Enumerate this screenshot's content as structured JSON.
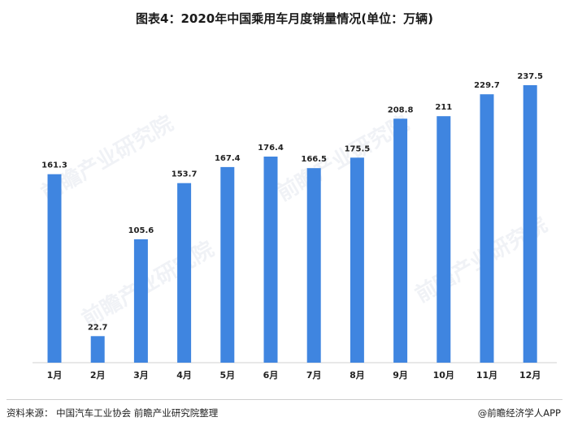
{
  "title": "图表4：2020年中国乘用车月度销量情况(单位：万辆)",
  "source": "资料来源：  中国汽车工业协会  前瞻产业研究院整理",
  "brand": "@前瞻经济学人APP",
  "watermark": "前瞻产业研究院",
  "colors": {
    "bar": "#3f85e0"
  },
  "chart_data": {
    "type": "bar",
    "categories": [
      "1月",
      "2月",
      "3月",
      "4月",
      "5月",
      "6月",
      "7月",
      "8月",
      "9月",
      "10月",
      "11月",
      "12月"
    ],
    "values": [
      161.3,
      22.7,
      105.6,
      153.7,
      167.4,
      176.4,
      166.5,
      175.5,
      208.8,
      211,
      229.7,
      237.5
    ],
    "value_labels": [
      "161.3",
      "22.7",
      "105.6",
      "153.7",
      "167.4",
      "176.4",
      "166.5",
      "175.5",
      "208.8",
      "211",
      "229.7",
      "237.5"
    ],
    "title": "图表4：2020年中国乘用车月度销量情况(单位：万辆)",
    "xlabel": "",
    "ylabel": "",
    "ylim": [
      0,
      237.5
    ],
    "grid": false,
    "legend": "none"
  }
}
